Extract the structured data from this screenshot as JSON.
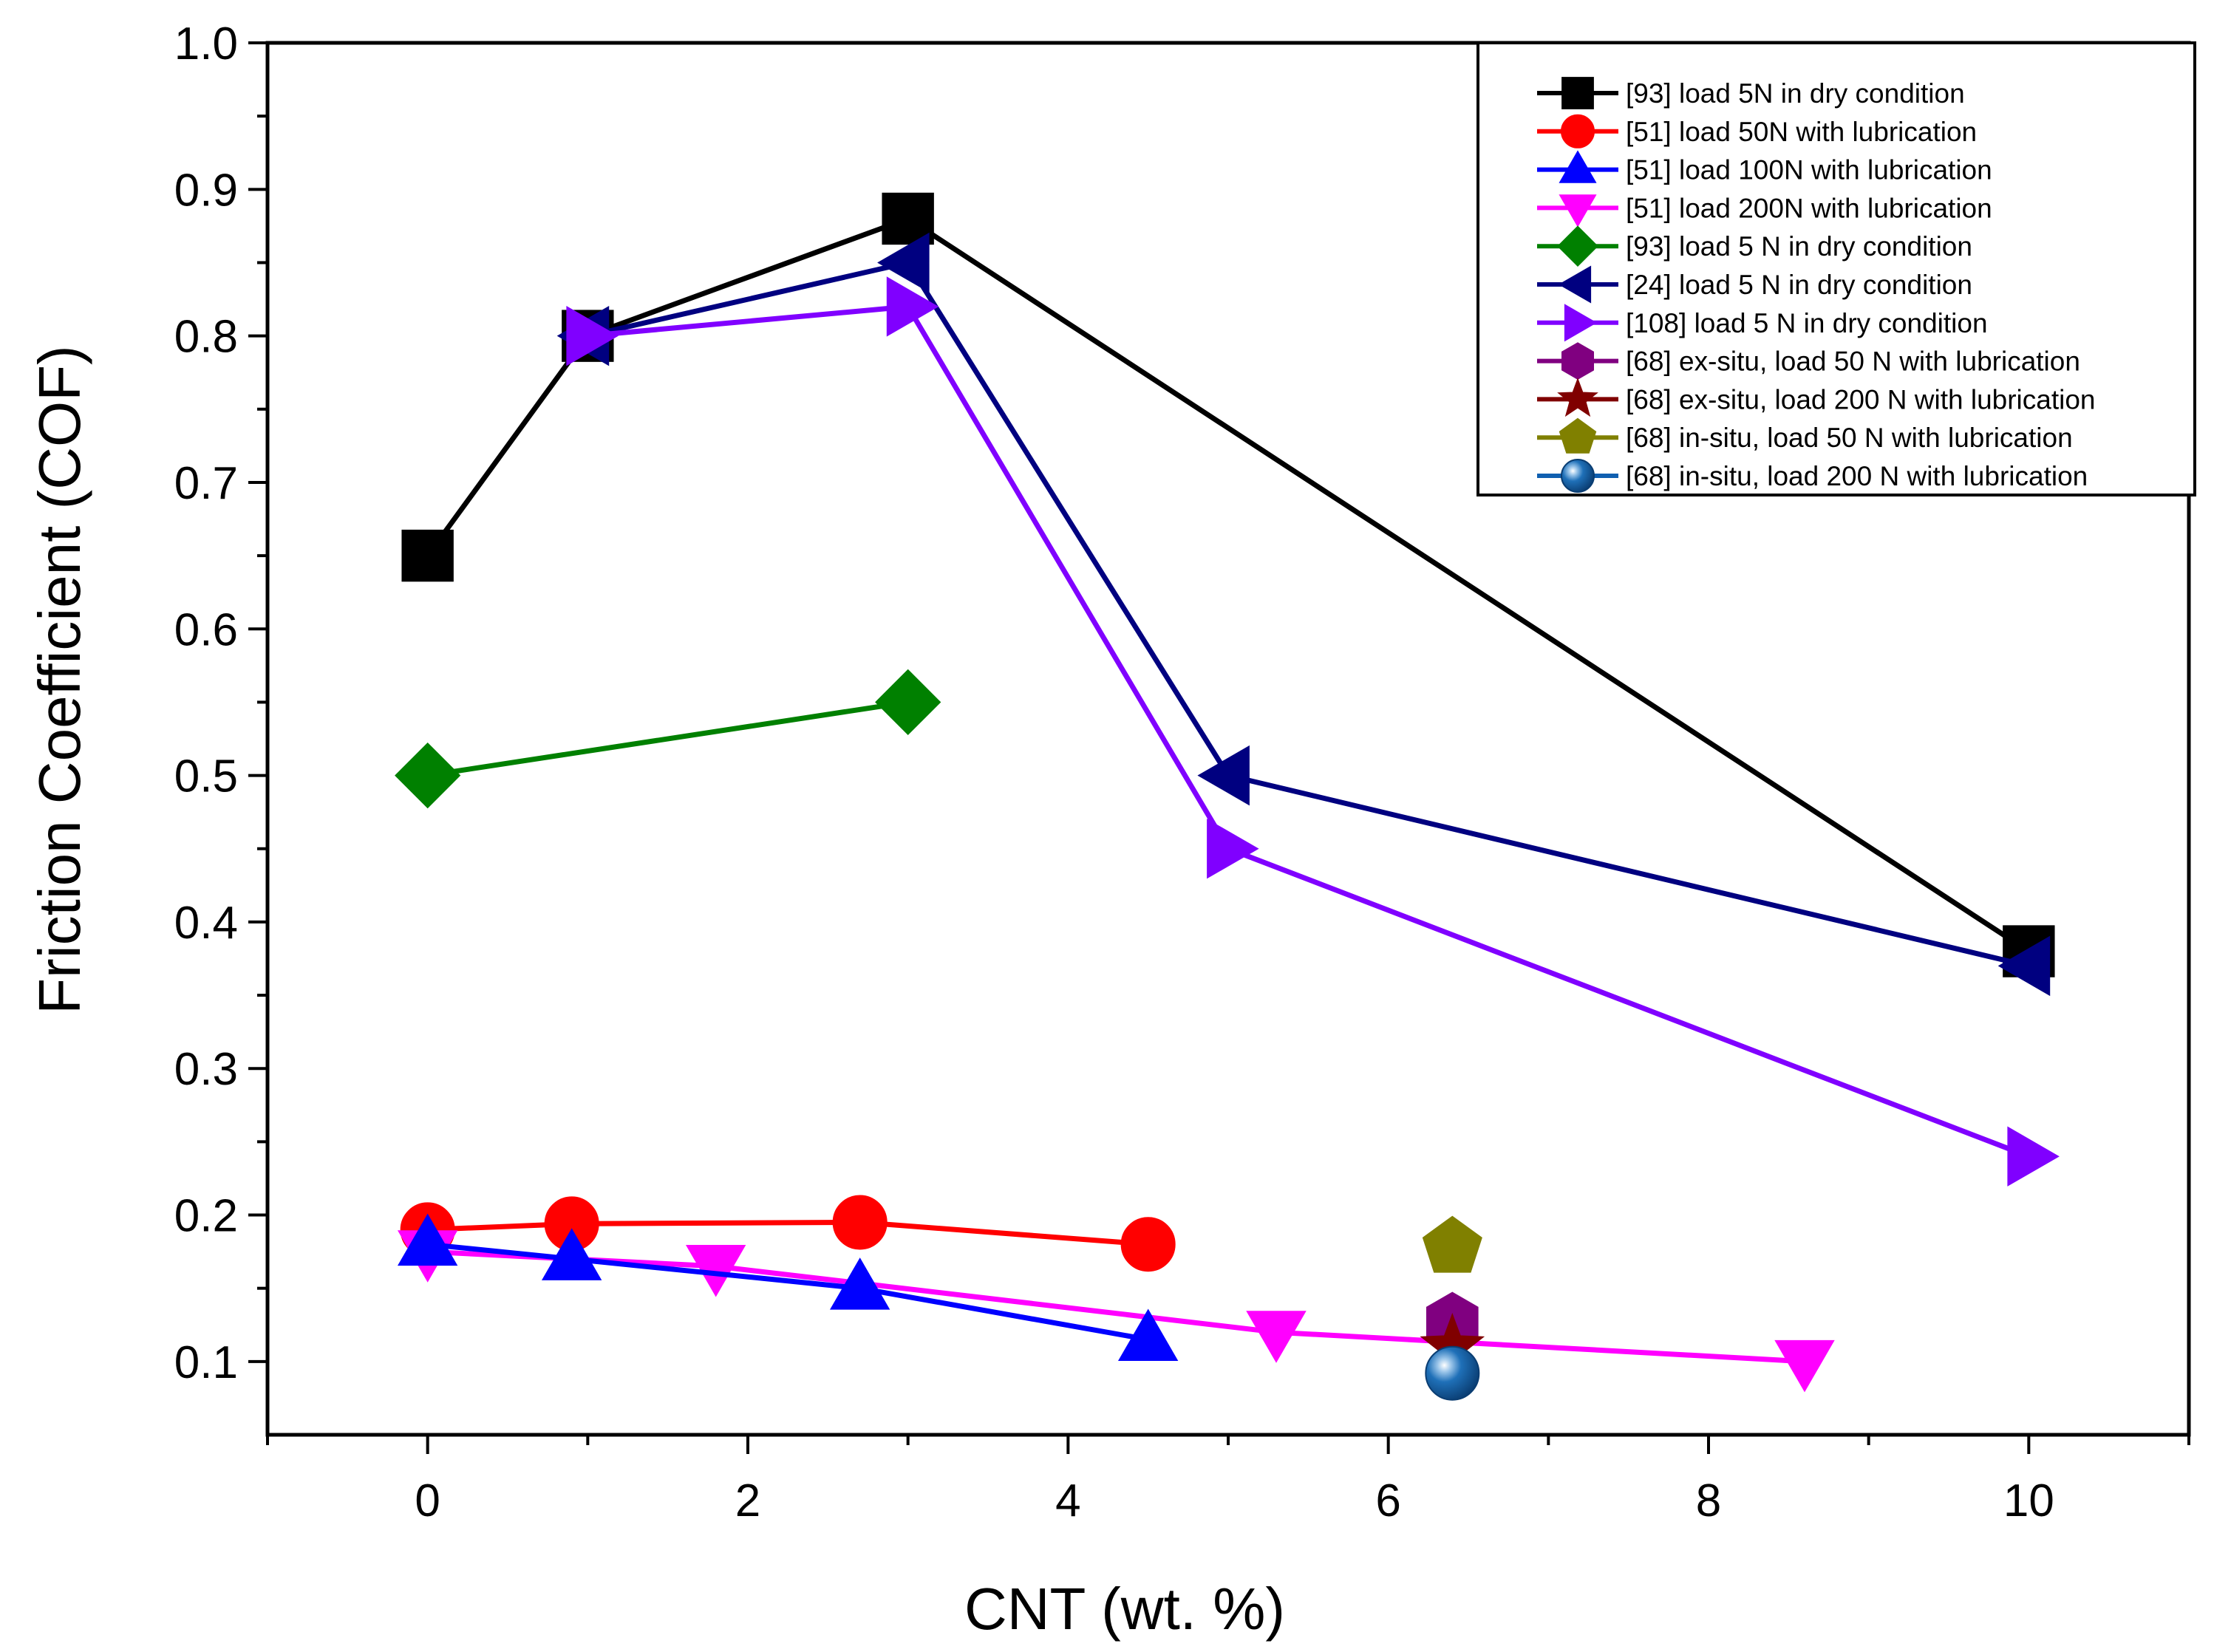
{
  "chart_data": {
    "type": "line",
    "xlabel": "CNT (wt. %)",
    "ylabel": "Friction Coefficient (COF)",
    "xlim": [
      -1,
      11
    ],
    "ylim": [
      0.05,
      1.0
    ],
    "x_ticks": [
      0,
      2,
      4,
      6,
      8,
      10
    ],
    "x_tick_labels": [
      "0",
      "2",
      "4",
      "6",
      "8",
      "10"
    ],
    "y_ticks": [
      0.1,
      0.2,
      0.3,
      0.4,
      0.5,
      0.6,
      0.7,
      0.8,
      0.9,
      1.0
    ],
    "y_tick_labels": [
      "0.1",
      "0.2",
      "0.3",
      "0.4",
      "0.5",
      "0.6",
      "0.7",
      "0.8",
      "0.9",
      "1.0"
    ],
    "legend_position": "top-right",
    "series": [
      {
        "name": "[93] load 5N in dry condition",
        "color": "#000000",
        "marker": "square",
        "x": [
          0,
          1,
          3,
          10
        ],
        "y": [
          0.65,
          0.8,
          0.88,
          0.38
        ]
      },
      {
        "name": "[51] load 50N with lubrication",
        "color": "#ff0000",
        "marker": "circle",
        "x": [
          0,
          0.9,
          2.7,
          4.5
        ],
        "y": [
          0.19,
          0.194,
          0.195,
          0.18
        ]
      },
      {
        "name": "[51] load 100N with lubrication",
        "color": "#0000ff",
        "marker": "triangle-up",
        "x": [
          0,
          0.9,
          2.7,
          4.5
        ],
        "y": [
          0.18,
          0.17,
          0.15,
          0.115
        ]
      },
      {
        "name": "[51] load 200N with lubrication",
        "color": "#ff00ff",
        "marker": "triangle-down",
        "x": [
          0,
          1.8,
          5.3,
          8.6
        ],
        "y": [
          0.175,
          0.165,
          0.12,
          0.1
        ]
      },
      {
        "name": "[93] load 5 N in dry condition",
        "color": "#008000",
        "marker": "diamond",
        "x": [
          0,
          3
        ],
        "y": [
          0.5,
          0.55
        ]
      },
      {
        "name": "[24] load 5 N in dry condition",
        "color": "#000080",
        "marker": "triangle-left",
        "x": [
          1,
          3,
          5,
          10
        ],
        "y": [
          0.8,
          0.85,
          0.5,
          0.37
        ]
      },
      {
        "name": "[108] load 5 N in dry condition",
        "color": "#8000ff",
        "marker": "triangle-right",
        "x": [
          1,
          3,
          5,
          10
        ],
        "y": [
          0.8,
          0.82,
          0.45,
          0.24
        ]
      },
      {
        "name": "[68] ex-situ, load 50 N with lubrication",
        "color": "#800080",
        "marker": "hexagon",
        "x": [
          6.4
        ],
        "y": [
          0.127
        ]
      },
      {
        "name": "[68] ex-situ, load 200 N with lubrication",
        "color": "#800000",
        "marker": "star",
        "x": [
          6.4
        ],
        "y": [
          0.11
        ]
      },
      {
        "name": "[68] in-situ, load 50 N with lubrication",
        "color": "#808000",
        "marker": "pentagon",
        "x": [
          6.4
        ],
        "y": [
          0.178
        ]
      },
      {
        "name": "[68] in-situ, load 200 N with lubrication",
        "color": "#1060b0",
        "marker": "sphere",
        "x": [
          6.4
        ],
        "y": [
          0.092
        ]
      }
    ]
  }
}
